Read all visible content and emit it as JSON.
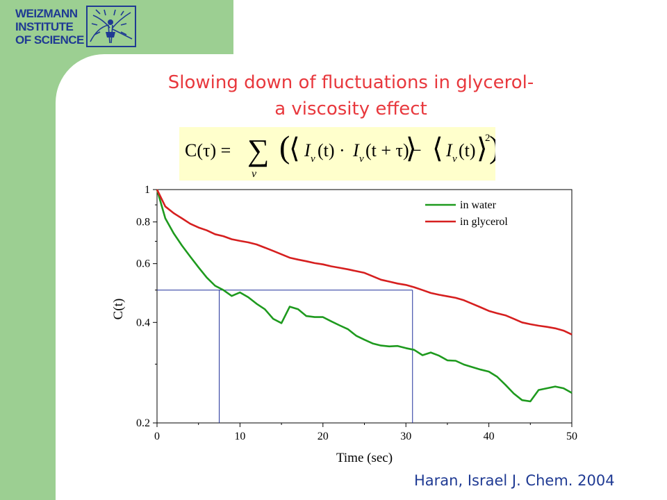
{
  "logo": {
    "line1": "WEIZMANN",
    "line2": "INSTITUTE",
    "line3": "OF SCIENCE"
  },
  "slide": {
    "title_line1": "Slowing down of fluctuations in glycerol-",
    "title_line2": "a viscosity effect",
    "citation": "Haran, Israel J. Chem. 2004"
  },
  "colors": {
    "sidebar": "#9ccf92",
    "title": "#e8383d",
    "citation": "#1f3a93",
    "formula_bg": "#ffffcc",
    "water": "#1e9a1e",
    "glycerol": "#d61f1f",
    "guide": "#1f2f9a"
  },
  "formula": {
    "lhs": "C(τ) =",
    "sum_symbol": "∑",
    "sum_index": "ν",
    "term_a": "I",
    "time_a": "(t) · ",
    "term_b": "I",
    "time_b": "(t + τ)",
    "minus": " − ",
    "term_c": "I",
    "time_c": "(t)",
    "power": "2"
  },
  "chart_data": {
    "type": "line",
    "xlabel": "Time (sec)",
    "ylabel": "C(t)",
    "xlim": [
      0,
      50
    ],
    "ylim": [
      0.2,
      1
    ],
    "yscale": "log",
    "xticks": [
      0,
      10,
      20,
      30,
      40,
      50
    ],
    "yticks": [
      0.2,
      0.4,
      0.6,
      0.8,
      1
    ],
    "ytick_labels": [
      "0.2",
      "0.4",
      "0.6",
      "0.8",
      "1"
    ],
    "legend_position": "top-right",
    "series": [
      {
        "name": "in water",
        "x": [
          0,
          1,
          2,
          3,
          4,
          5,
          6,
          7,
          8,
          9,
          10,
          11,
          12,
          13,
          14,
          15,
          16,
          17,
          18,
          19,
          20,
          21,
          22,
          23,
          24,
          25,
          26,
          27,
          28,
          29,
          30,
          31,
          32,
          33,
          34,
          35,
          36,
          37,
          38,
          39,
          40,
          41,
          42,
          43,
          44,
          45,
          46,
          47,
          48,
          49,
          50
        ],
        "y": [
          1.0,
          0.82,
          0.74,
          0.68,
          0.63,
          0.585,
          0.545,
          0.515,
          0.5,
          0.48,
          0.492,
          0.476,
          0.455,
          0.438,
          0.41,
          0.398,
          0.446,
          0.438,
          0.418,
          0.415,
          0.415,
          0.403,
          0.392,
          0.382,
          0.365,
          0.355,
          0.346,
          0.341,
          0.339,
          0.34,
          0.335,
          0.331,
          0.319,
          0.325,
          0.318,
          0.308,
          0.307,
          0.299,
          0.294,
          0.289,
          0.285,
          0.275,
          0.26,
          0.245,
          0.234,
          0.232,
          0.251,
          0.254,
          0.257,
          0.254,
          0.246
        ]
      },
      {
        "name": "in glycerol",
        "x": [
          0,
          1,
          2,
          3,
          4,
          5,
          6,
          7,
          8,
          9,
          10,
          11,
          12,
          13,
          14,
          15,
          16,
          17,
          18,
          19,
          20,
          21,
          22,
          23,
          24,
          25,
          26,
          27,
          28,
          29,
          30,
          31,
          32,
          33,
          34,
          35,
          36,
          37,
          38,
          39,
          40,
          41,
          42,
          43,
          44,
          45,
          46,
          47,
          48,
          49,
          50
        ],
        "y": [
          1.0,
          0.89,
          0.85,
          0.82,
          0.79,
          0.77,
          0.755,
          0.735,
          0.725,
          0.71,
          0.702,
          0.695,
          0.685,
          0.67,
          0.655,
          0.64,
          0.625,
          0.617,
          0.61,
          0.602,
          0.597,
          0.589,
          0.583,
          0.577,
          0.57,
          0.563,
          0.55,
          0.537,
          0.53,
          0.523,
          0.518,
          0.51,
          0.5,
          0.49,
          0.484,
          0.479,
          0.474,
          0.466,
          0.455,
          0.444,
          0.433,
          0.426,
          0.42,
          0.41,
          0.4,
          0.395,
          0.391,
          0.388,
          0.384,
          0.378,
          0.368
        ]
      }
    ],
    "guide_lines": {
      "level": 0.5,
      "x_left": 7.5,
      "x_right": 30.8
    }
  }
}
